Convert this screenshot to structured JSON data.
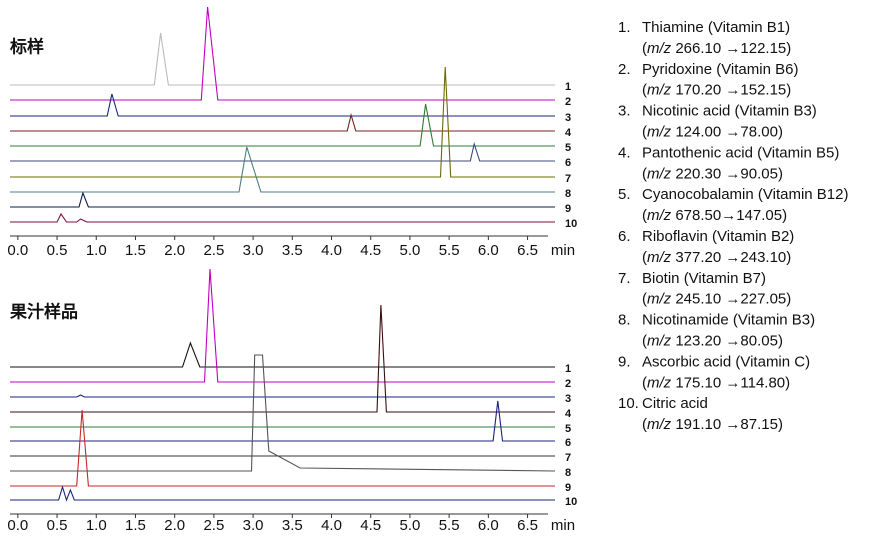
{
  "chart_data": [
    {
      "type": "line",
      "title": "标样",
      "xlabel": "min",
      "xlim": [
        -0.1,
        6.85
      ],
      "xticks": [
        {
          "value": 0,
          "label": "0.0"
        },
        0.5,
        {
          "value": 1,
          "label": "1.0"
        },
        1.5,
        {
          "value": 2,
          "label": "2.0"
        },
        2.5,
        {
          "value": 3,
          "label": "3.0"
        },
        3.5,
        {
          "value": 4,
          "label": "4.0"
        },
        4.5,
        {
          "value": 5,
          "label": "5.0"
        },
        5.5,
        {
          "value": 6,
          "label": "6.0"
        },
        6.5
      ],
      "series": [
        {
          "name": "1",
          "color": "#bbbbbb",
          "x": [
            -0.1,
            1.74,
            1.82,
            1.92,
            6.85
          ],
          "values": [
            0,
            0,
            52,
            0,
            0
          ]
        },
        {
          "name": "2",
          "color": "#c000c0",
          "x": [
            -0.1,
            2.34,
            2.42,
            2.55,
            6.85
          ],
          "values": [
            0,
            0,
            93,
            0,
            0
          ]
        },
        {
          "name": "3",
          "color": "#1a237e",
          "x": [
            -0.1,
            1.14,
            1.2,
            1.28,
            6.85
          ],
          "values": [
            0,
            0,
            22,
            0,
            0
          ]
        },
        {
          "name": "4",
          "color": "#7b1f1f",
          "x": [
            -0.1,
            4.2,
            4.25,
            4.31,
            6.85
          ],
          "values": [
            0,
            0,
            16,
            0,
            0
          ]
        },
        {
          "name": "5",
          "color": "#2e7d32",
          "x": [
            -0.1,
            5.13,
            5.2,
            5.3,
            6.85
          ],
          "values": [
            0,
            0,
            42,
            0,
            0
          ]
        },
        {
          "name": "6",
          "color": "#3c4a78",
          "x": [
            -0.1,
            5.77,
            5.82,
            5.89,
            6.85
          ],
          "values": [
            0,
            0,
            17,
            0,
            0
          ]
        },
        {
          "name": "7",
          "color": "#6b6b00",
          "x": [
            -0.1,
            5.39,
            5.45,
            5.52,
            6.85
          ],
          "values": [
            0,
            0,
            110,
            0,
            0
          ]
        },
        {
          "name": "8",
          "color": "#4f7f7f",
          "x": [
            -0.1,
            2.82,
            2.92,
            3.1,
            6.85
          ],
          "values": [
            0,
            0,
            45,
            0,
            0
          ]
        },
        {
          "name": "9",
          "color": "#0d1b4a",
          "x": [
            -0.1,
            0.78,
            0.83,
            0.9,
            6.85
          ],
          "values": [
            0,
            0,
            14,
            0,
            0
          ]
        },
        {
          "name": "10",
          "color": "#7a1040",
          "x": [
            -0.1,
            0.5,
            0.55,
            0.62,
            0.75,
            0.8,
            0.88,
            6.85
          ],
          "values": [
            0,
            0,
            8,
            0,
            0,
            3,
            0,
            0
          ]
        }
      ]
    },
    {
      "type": "line",
      "title": "果汁样品",
      "xlabel": "min",
      "xlim": [
        -0.1,
        6.85
      ],
      "xticks": [
        {
          "value": 0,
          "label": "0.0"
        },
        0.5,
        {
          "value": 1,
          "label": "1.0"
        },
        1.5,
        {
          "value": 2,
          "label": "2.0"
        },
        2.5,
        {
          "value": 3,
          "label": "3.0"
        },
        3.5,
        {
          "value": 4,
          "label": "4.0"
        },
        4.5,
        {
          "value": 5,
          "label": "5.0"
        },
        5.5,
        {
          "value": 6,
          "label": "6.0"
        },
        6.5
      ],
      "series": [
        {
          "name": "1",
          "color": "#111111",
          "x": [
            -0.1,
            2.1,
            2.2,
            2.32,
            6.85
          ],
          "values": [
            0,
            0,
            24,
            0,
            0
          ]
        },
        {
          "name": "2",
          "color": "#c000c0",
          "x": [
            -0.1,
            2.38,
            2.45,
            2.55,
            6.85
          ],
          "values": [
            0,
            0,
            113,
            0,
            0
          ]
        },
        {
          "name": "3",
          "color": "#1a237e",
          "x": [
            -0.1,
            0.75,
            0.8,
            0.85,
            6.85
          ],
          "values": [
            0,
            0,
            2,
            0,
            0
          ]
        },
        {
          "name": "4",
          "color": "#3a0f0f",
          "x": [
            -0.1,
            4.58,
            4.63,
            4.7,
            6.85
          ],
          "values": [
            0,
            0,
            107,
            0,
            0
          ]
        },
        {
          "name": "5",
          "color": "#2e7d32",
          "x": [
            -0.1,
            6.85
          ],
          "values": [
            0,
            0
          ]
        },
        {
          "name": "6",
          "color": "#1a237e",
          "x": [
            -0.1,
            6.06,
            6.12,
            6.18,
            6.85
          ],
          "values": [
            0,
            0,
            40,
            0,
            0
          ]
        },
        {
          "name": "7",
          "color": "#333333",
          "x": [
            -0.1,
            6.85
          ],
          "values": [
            0,
            0
          ]
        },
        {
          "name": "8",
          "color": "#555555",
          "x": [
            -0.1,
            2.98,
            3.02,
            3.12,
            3.2,
            3.6,
            6.85
          ],
          "values": [
            0,
            0,
            116,
            116,
            20,
            3,
            0
          ]
        },
        {
          "name": "9",
          "color": "#c62828",
          "x": [
            -0.1,
            0.75,
            0.82,
            0.9,
            6.85
          ],
          "values": [
            0,
            0,
            76,
            0,
            0
          ]
        },
        {
          "name": "10",
          "color": "#1a237e",
          "x": [
            -0.1,
            0.52,
            0.57,
            0.62,
            0.67,
            0.72,
            6.85
          ],
          "values": [
            0,
            0,
            13,
            0,
            10,
            0,
            0
          ]
        }
      ]
    }
  ],
  "legend": {
    "mz_open": "(",
    "mz_label": "m/z",
    "mz_close": ")",
    "items": [
      {
        "number": "1.",
        "name": "Thiamine (Vitamin B1)",
        "transition": " 266.10 →122.15"
      },
      {
        "number": "2.",
        "name": "Pyridoxine (Vitamin B6)",
        "transition": " 170.20 →152.15"
      },
      {
        "number": "3.",
        "name": "Nicotinic acid (Vitamin B3)",
        "transition": " 124.00 →78.00"
      },
      {
        "number": "4.",
        "name": "Pantothenic acid (Vitamin B5)",
        "transition": " 220.30 →90.05"
      },
      {
        "number": "5.",
        "name": "Cyanocobalamin  (Vitamin B12)",
        "transition": " 678.50→147.05"
      },
      {
        "number": "6.",
        "name": "Riboflavin (Vitamin B2)",
        "transition": " 377.20 →243.10"
      },
      {
        "number": "7.",
        "name": "Biotin (Vitamin B7)",
        "transition": " 245.10 →227.05"
      },
      {
        "number": "8.",
        "name": "Nicotinamide (Vitamin B3)",
        "transition": " 123.20 →80.05"
      },
      {
        "number": "9.",
        "name": "Ascorbic acid (Vitamin C)",
        "transition": " 175.10 →114.80"
      },
      {
        "number": "10.",
        "name": "Citric acid",
        "transition": " 191.10 →87.15"
      }
    ]
  }
}
